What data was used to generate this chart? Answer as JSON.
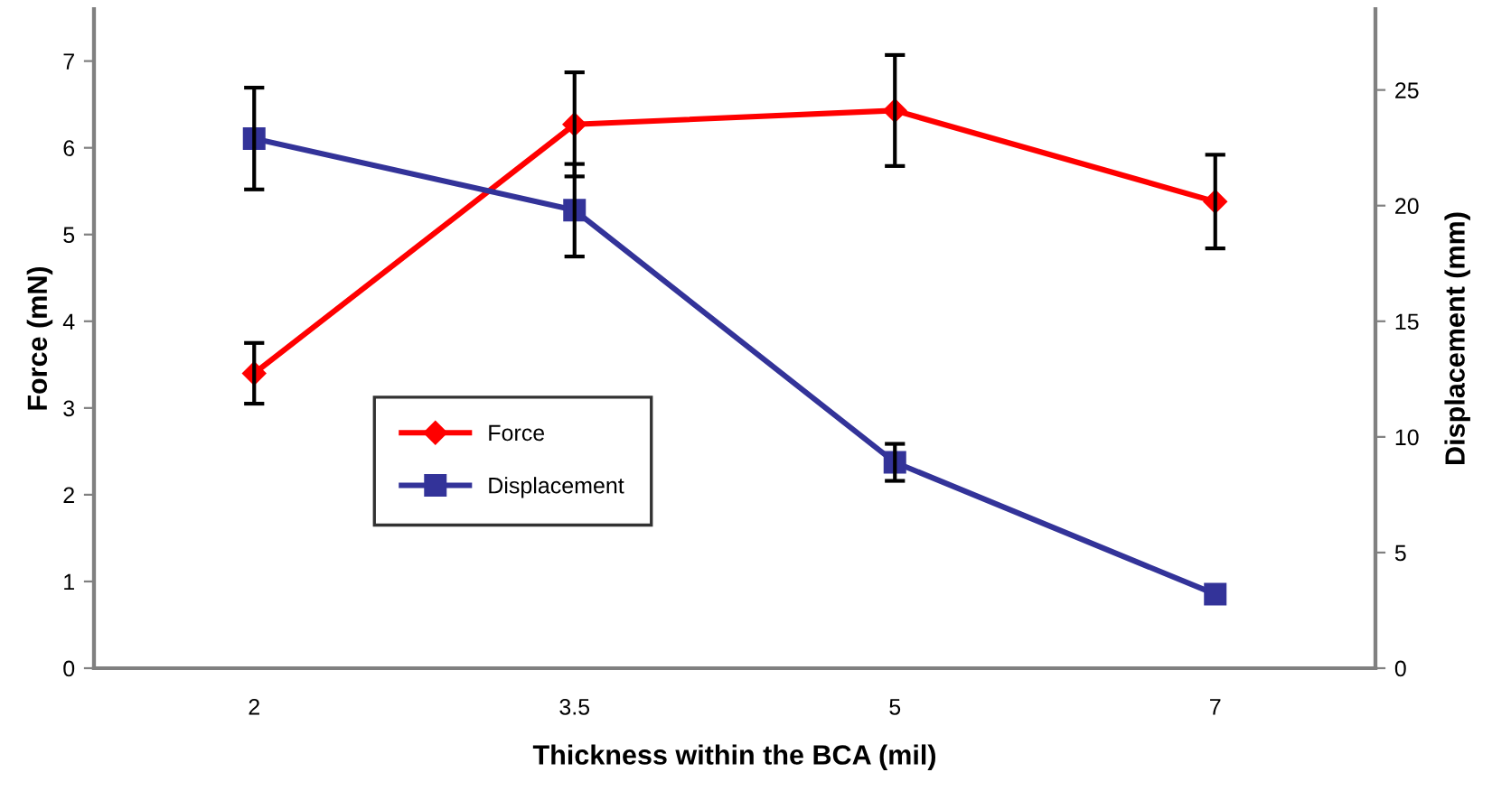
{
  "chart_data": {
    "type": "line",
    "xlabel": "Thickness within the BCA (mil)",
    "ylabel": "Force (mN)",
    "y2label": "Displacement (mm)",
    "categories": [
      "2",
      "3.5",
      "5",
      "7"
    ],
    "series": [
      {
        "name": "Force",
        "color": "#ff0000",
        "values": [
          3.4,
          6.27,
          6.43,
          5.38
        ],
        "errors": [
          0.35,
          0.6,
          0.64,
          0.54
        ],
        "marker": "diamond"
      },
      {
        "name": "Displacement",
        "color": "#333399",
        "axis": "y2",
        "values": [
          22.9,
          19.8,
          8.9,
          3.2
        ],
        "errors": [
          2.2,
          2.0,
          0.8,
          null
        ],
        "marker": "square"
      }
    ],
    "ylim": [
      0,
      7.6
    ],
    "yticks": [
      0,
      1,
      2,
      3,
      4,
      5,
      6,
      7
    ],
    "y2lim": [
      0,
      28.5
    ],
    "y2ticks": [
      0,
      5,
      10,
      15,
      20,
      25
    ],
    "grid": false,
    "legend": "bottom left",
    "line_style": "solid"
  }
}
